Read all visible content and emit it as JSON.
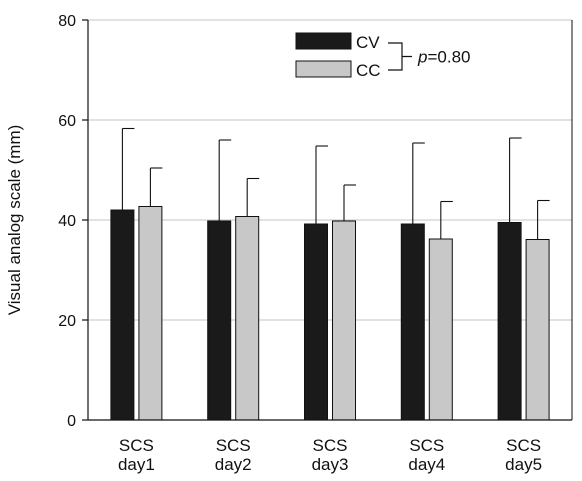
{
  "chart_data": {
    "type": "bar",
    "title": "",
    "xlabel": "",
    "ylabel": "Visual analog scale (mm)",
    "ylim": [
      0,
      80
    ],
    "yticks": [
      0,
      20,
      40,
      60,
      80
    ],
    "grid": true,
    "legend_position": "top-right",
    "categories": [
      [
        "SCS",
        "day1"
      ],
      [
        "SCS",
        "day2"
      ],
      [
        "SCS",
        "day3"
      ],
      [
        "SCS",
        "day4"
      ],
      [
        "SCS",
        "day5"
      ]
    ],
    "series": [
      {
        "name": "CV",
        "color": "#1a1a1a",
        "values": [
          42,
          39.8,
          39.2,
          39.2,
          39.5
        ],
        "error_upper": [
          16.3,
          16.2,
          15.6,
          16.2,
          16.9
        ]
      },
      {
        "name": "CC",
        "color": "#c8c8c8",
        "values": [
          42.7,
          40.7,
          39.8,
          36.2,
          36.1
        ],
        "error_upper": [
          7.7,
          7.6,
          7.2,
          7.5,
          7.8
        ]
      }
    ],
    "annotation": {
      "prefix": "p",
      "text": "=0.80"
    }
  }
}
